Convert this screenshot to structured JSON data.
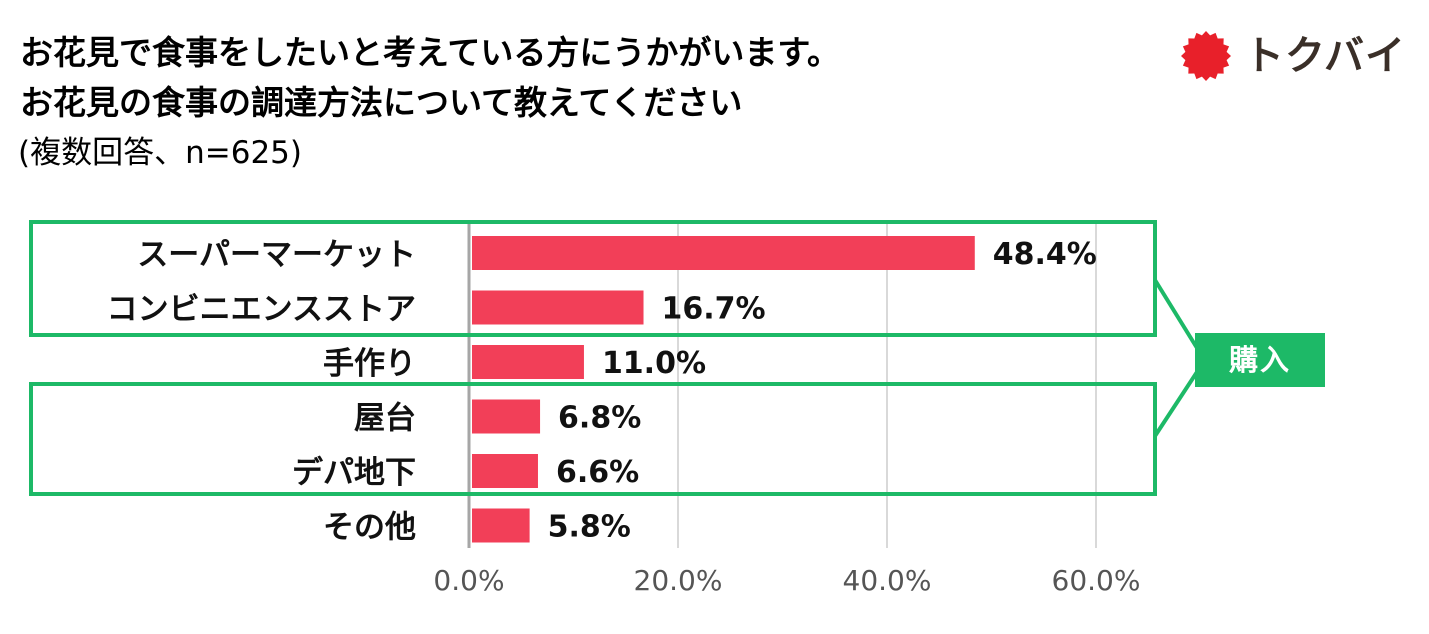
{
  "header": {
    "title_line1": "お花見で食事をしたいと考えている方にうかがいます。",
    "title_line2": "お花見の食事の調達方法について教えてください",
    "subtitle": "(複数回答、n=625)"
  },
  "logo": {
    "text": "トクバイ",
    "mark": "sun-burst-icon",
    "mark_color": "#e8202a"
  },
  "annotation": {
    "label": "購入",
    "color": "#1db967"
  },
  "chart_data": {
    "type": "bar",
    "orientation": "horizontal",
    "categories": [
      "スーパーマーケット",
      "コンビニエンスストア",
      "手作り",
      "屋台",
      "デパ地下",
      "その他"
    ],
    "values": [
      48.4,
      16.7,
      11.0,
      6.8,
      6.6,
      5.8
    ],
    "value_labels": [
      "48.4%",
      "16.7%",
      "11.0%",
      "6.8%",
      "6.6%",
      "5.8%"
    ],
    "xlim": [
      0,
      60
    ],
    "x_ticks": [
      0,
      20,
      40,
      60
    ],
    "x_tick_labels": [
      "0.0%",
      "20.0%",
      "40.0%",
      "60.0%"
    ],
    "grid": true,
    "bar_color": "#f23f58",
    "title": "",
    "xlabel": "",
    "ylabel": ""
  }
}
